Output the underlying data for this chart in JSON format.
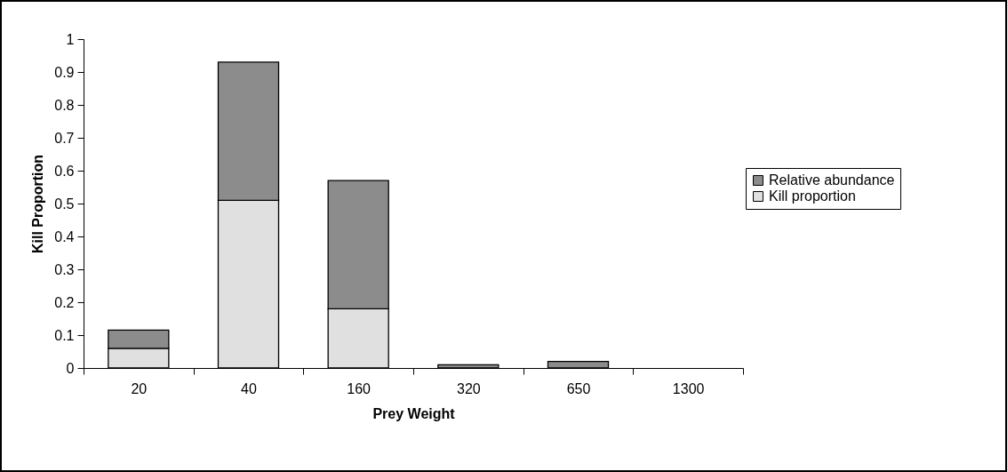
{
  "chart_data": {
    "type": "bar",
    "xlabel": "Prey Weight",
    "ylabel": "Kill Proportion",
    "categories": [
      "20",
      "40",
      "160",
      "320",
      "650",
      "1300"
    ],
    "series": [
      {
        "name": "Kill proportion",
        "color": "#e0e0e0",
        "values": [
          0.06,
          0.51,
          0.18,
          0,
          0,
          0
        ]
      },
      {
        "name": "Relative abundance",
        "color": "#8c8c8c",
        "values": [
          0.055,
          0.42,
          0.39,
          0.01,
          0.02,
          0
        ]
      }
    ],
    "stacked": true,
    "ylim": [
      0,
      1
    ],
    "yticks": [
      0,
      0.1,
      0.2,
      0.3,
      0.4,
      0.5,
      0.6,
      0.7,
      0.8,
      0.9,
      1
    ],
    "grid": false,
    "legend": "right"
  }
}
